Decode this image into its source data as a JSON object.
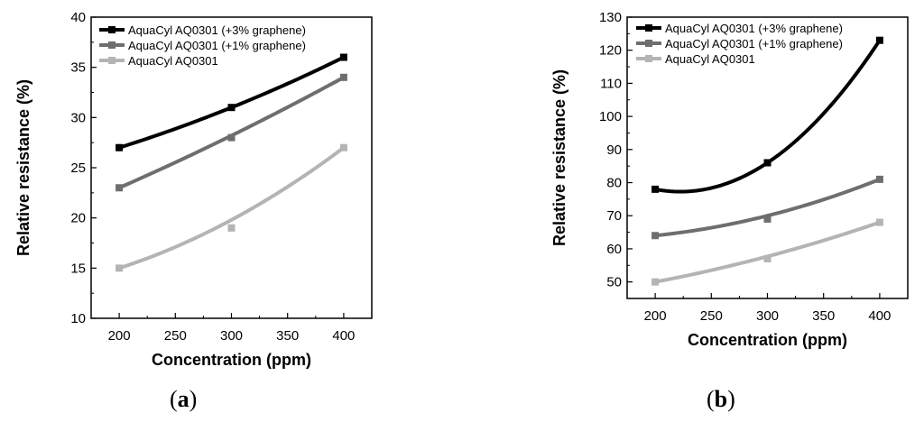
{
  "chart_data": [
    {
      "panel": "(a)",
      "panel_letter": "a",
      "type": "line",
      "xlabel": "Concentration (ppm)",
      "ylabel": "Relative resistance (%)",
      "xlim": [
        175,
        425
      ],
      "ylim": [
        10,
        40
      ],
      "xticks": [
        200,
        250,
        300,
        350,
        400
      ],
      "yticks": [
        10,
        15,
        20,
        25,
        30,
        35,
        40
      ],
      "x": [
        200,
        300,
        400
      ],
      "series": [
        {
          "name": "AquaCyl AQ0301 (+3% graphene)",
          "color": "#000000",
          "values": [
            27,
            31,
            36
          ],
          "fit": [
            27,
            31,
            36
          ]
        },
        {
          "name": "AquaCyl AQ0301  (+1% graphene)",
          "color": "#6e6e6e",
          "values": [
            23,
            28,
            34
          ],
          "fit": [
            23,
            28.2,
            34
          ]
        },
        {
          "name": "AquaCyl AQ0301",
          "color": "#b4b4b4",
          "values": [
            15,
            19,
            27
          ],
          "fit": [
            15,
            19.8,
            27
          ]
        }
      ],
      "legend": "top-left",
      "grid": false
    },
    {
      "panel": "(b)",
      "panel_letter": "b",
      "type": "line",
      "xlabel": "Concentration (ppm)",
      "ylabel": "Relative resistance (%)",
      "xlim": [
        175,
        425
      ],
      "ylim": [
        45,
        130
      ],
      "xticks": [
        200,
        250,
        300,
        350,
        400
      ],
      "yticks": [
        50,
        60,
        70,
        80,
        90,
        100,
        110,
        120,
        130
      ],
      "x": [
        200,
        300,
        400
      ],
      "series": [
        {
          "name": "AquaCyl AQ0301 (+3% graphene)",
          "color": "#000000",
          "values": [
            78,
            86,
            123
          ],
          "fit": [
            78,
            86,
            123
          ]
        },
        {
          "name": "AquaCyl AQ0301  (+1% graphene)",
          "color": "#6e6e6e",
          "values": [
            64,
            69,
            81
          ],
          "fit": [
            64,
            70,
            81
          ]
        },
        {
          "name": "AquaCyl AQ0301",
          "color": "#b4b4b4",
          "values": [
            50,
            57,
            68
          ],
          "fit": [
            50,
            57.7,
            68
          ]
        }
      ],
      "legend": "top-left",
      "grid": false
    }
  ]
}
